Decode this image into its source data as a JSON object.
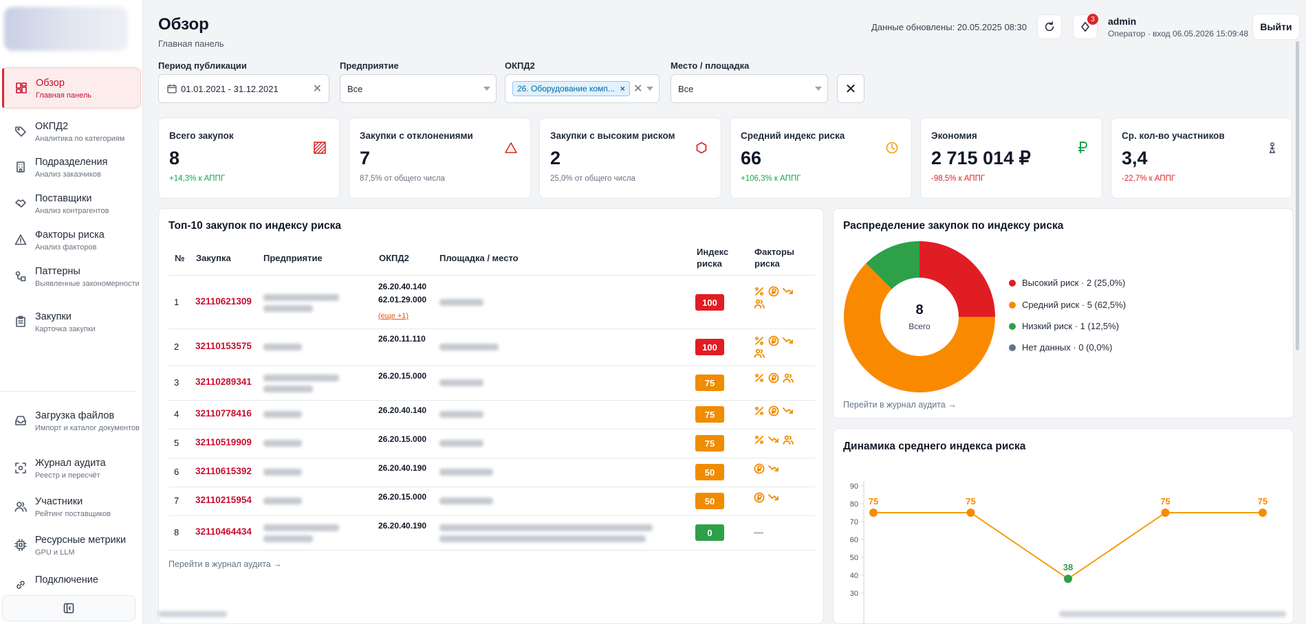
{
  "sidebar": {
    "items": [
      {
        "label": "Обзор",
        "sub": "Главная панель",
        "icon": "dashboard-icon"
      },
      {
        "label": "ОКПД2",
        "sub": "Аналитика по категориям",
        "icon": "tag-icon"
      },
      {
        "label": "Подразделения",
        "sub": "Анализ заказчиков",
        "icon": "building-icon"
      },
      {
        "label": "Поставщики",
        "sub": "Анализ контрагентов",
        "icon": "handshake-icon"
      },
      {
        "label": "Факторы риска",
        "sub": "Анализ факторов",
        "icon": "warning-icon"
      },
      {
        "label": "Паттерны",
        "sub": "Выявленные закономерности",
        "icon": "pattern-icon"
      },
      {
        "label": "Закупки",
        "sub": "Карточка закупки",
        "icon": "clipboard-icon"
      }
    ],
    "tools": [
      {
        "label": "Загрузка файлов",
        "sub": "Импорт и каталог документов",
        "icon": "inbox-icon"
      },
      {
        "label": "Журнал аудита",
        "sub": "Реестр и пересчёт",
        "icon": "scan-icon"
      },
      {
        "label": "Участники",
        "sub": "Рейтинг поставщиков",
        "icon": "users-icon"
      },
      {
        "label": "Ресурсные метрики",
        "sub": "GPU и LLM",
        "icon": "chip-icon"
      },
      {
        "label": "Подключение",
        "sub": "",
        "icon": "link-icon"
      }
    ]
  },
  "header": {
    "title": "Обзор",
    "subtitle": "Главная панель",
    "updated": "Данные обновлены: 20.05.2025 08:30",
    "notif_count": "3",
    "user_name": "admin",
    "user_role": "Оператор · вход 06.05.2026 15:09:48",
    "logout": "Выйти"
  },
  "filters": {
    "period_label": "Период публикации",
    "period_value": "01.01.2021 - 31.12.2021",
    "company_label": "Предприятие",
    "company_value": "Все",
    "okpd_label": "ОКПД2",
    "okpd_chip": "26. Оборудование комп...",
    "place_label": "Место / площадка",
    "place_value": "Все"
  },
  "kpis": [
    {
      "title": "Всего закупок",
      "value": "8",
      "note": "+14,3% к АППГ",
      "tone": "green",
      "icon": "hatched-square-icon"
    },
    {
      "title": "Закупки с отклонениями",
      "value": "7",
      "note": "87,5% от общего числа",
      "tone": "gray",
      "icon": "triangle-alert-icon"
    },
    {
      "title": "Закупки с высоким риском",
      "value": "2",
      "note": "25,0% от общего числа",
      "tone": "gray",
      "icon": "hexagon-icon"
    },
    {
      "title": "Средний индекс риска",
      "value": "66",
      "note": "+106,3% к АППГ",
      "tone": "green",
      "icon": "clock-gauge-icon"
    },
    {
      "title": "Экономия",
      "value": "2 715 014 ₽",
      "note": "-98,5% к АППГ",
      "tone": "red",
      "icon": "ruble-icon"
    },
    {
      "title": "Ср. кол-во участников",
      "value": "3,4",
      "note": "-22,7% к АППГ",
      "tone": "red",
      "icon": "person-icon"
    }
  ],
  "table": {
    "title": "Топ-10 закупок по индексу риска",
    "headers": {
      "num": "№",
      "id": "Закупка",
      "company": "Предприятие",
      "okpd": "ОКПД2",
      "place": "Площадка / место",
      "index": "Индекс риска",
      "factors": "Факторы риска"
    },
    "rows": [
      {
        "n": "1",
        "id": "32110621309",
        "okpd": [
          "26.20.40.140",
          "62.01.29.000"
        ],
        "more": "(еще +1)",
        "score": "100",
        "level": "red",
        "factors": [
          "percent",
          "ruble",
          "trend",
          "users"
        ]
      },
      {
        "n": "2",
        "id": "32110153575",
        "okpd": [
          "26.20.11.110"
        ],
        "more": "",
        "score": "100",
        "level": "red",
        "factors": [
          "percent",
          "ruble",
          "trend",
          "users"
        ]
      },
      {
        "n": "3",
        "id": "32110289341",
        "okpd": [
          "26.20.15.000"
        ],
        "more": "",
        "score": "75",
        "level": "orange",
        "factors": [
          "percent",
          "ruble",
          "users"
        ]
      },
      {
        "n": "4",
        "id": "32110778416",
        "okpd": [
          "26.20.40.140"
        ],
        "more": "",
        "score": "75",
        "level": "orange",
        "factors": [
          "percent",
          "ruble",
          "trend"
        ]
      },
      {
        "n": "5",
        "id": "32110519909",
        "okpd": [
          "26.20.15.000"
        ],
        "more": "",
        "score": "75",
        "level": "orange",
        "factors": [
          "percent",
          "trend",
          "users"
        ]
      },
      {
        "n": "6",
        "id": "32110615392",
        "okpd": [
          "26.20.40.190"
        ],
        "more": "",
        "score": "50",
        "level": "orange",
        "factors": [
          "ruble",
          "trend"
        ]
      },
      {
        "n": "7",
        "id": "32110215954",
        "okpd": [
          "26.20.15.000"
        ],
        "more": "",
        "score": "50",
        "level": "orange",
        "factors": [
          "ruble",
          "trend"
        ]
      },
      {
        "n": "8",
        "id": "32110464434",
        "okpd": [
          "26.20.40.190"
        ],
        "more": "",
        "score": "0",
        "level": "green",
        "factors": []
      }
    ],
    "dash": "—",
    "link": "Перейти в журнал аудита →"
  },
  "donut": {
    "title": "Распределение закупок по индексу риска",
    "center_value": "8",
    "center_label": "Всего",
    "link": "Перейти в журнал аудита →"
  },
  "line": {
    "title": "Динамика среднего индекса риска"
  },
  "chart_data": [
    {
      "type": "pie",
      "title": "Распределение закупок по индексу риска",
      "categories": [
        "Высокий риск · 2 (25,0%)",
        "Средний риск · 5 (62,5%)",
        "Низкий риск · 1 (12,5%)",
        "Нет данных · 0 (0,0%)"
      ],
      "values": [
        2,
        5,
        1,
        0
      ],
      "colors": [
        "#e11d24",
        "#f98a00",
        "#2ea04a",
        "#64748b"
      ]
    },
    {
      "type": "line",
      "title": "Динамика среднего индекса риска",
      "x": [
        "1",
        "2",
        "3",
        "4",
        "5"
      ],
      "y": [
        75,
        75,
        38,
        75,
        75
      ],
      "point_colors": [
        "#f98a00",
        "#f98a00",
        "#2ea04a",
        "#f98a00",
        "#f98a00"
      ],
      "yticks": [
        90,
        80,
        70,
        60,
        50,
        40,
        30
      ],
      "ylim": [
        30,
        90
      ]
    }
  ]
}
